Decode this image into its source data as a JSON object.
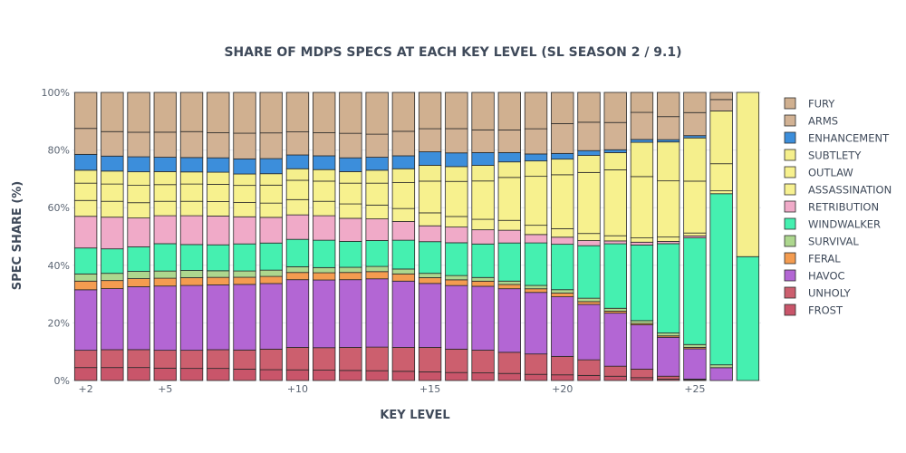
{
  "chart_data": {
    "type": "bar",
    "stacked": true,
    "title": "SHARE OF MDPS SPECS AT EACH KEY LEVEL (SL SEASON 2 / 9.1)",
    "xlabel": "KEY LEVEL",
    "ylabel": "SPEC SHARE (%)",
    "ylim": [
      0,
      100
    ],
    "y_ticks": [
      "0%",
      "20%",
      "40%",
      "60%",
      "80%",
      "100%"
    ],
    "x_ticks": [
      "+2",
      "+5",
      "+10",
      "+15",
      "+20",
      "+25"
    ],
    "x": [
      2,
      3,
      4,
      5,
      6,
      7,
      8,
      9,
      10,
      11,
      12,
      13,
      14,
      15,
      16,
      17,
      18,
      19,
      20,
      21,
      22,
      23,
      24,
      25,
      26,
      27
    ],
    "legend_position": "right",
    "grid": true,
    "series": [
      {
        "name": "FROST",
        "color": "#c9556a",
        "values": [
          4.5,
          4.5,
          4.5,
          4.3,
          4.2,
          4.2,
          4.0,
          3.8,
          3.7,
          3.6,
          3.5,
          3.4,
          3.2,
          3.0,
          2.8,
          2.7,
          2.5,
          2.2,
          2.0,
          1.8,
          1.5,
          1.0,
          0.5,
          0.3,
          0,
          0
        ]
      },
      {
        "name": "UNHOLY",
        "color": "#cc5f6e",
        "values": [
          6.0,
          6.2,
          6.2,
          6.2,
          6.3,
          6.5,
          6.7,
          7.2,
          7.8,
          7.8,
          8.0,
          8.2,
          8.3,
          8.5,
          8.2,
          8.0,
          7.5,
          7.3,
          6.5,
          5.5,
          3.5,
          3.0,
          1.0,
          0.2,
          0,
          0
        ]
      },
      {
        "name": "HAVOC",
        "color": "#b366d4",
        "values": [
          21.0,
          21.2,
          21.8,
          22.3,
          22.5,
          22.5,
          23.0,
          23.0,
          23.5,
          23.5,
          23.5,
          23.7,
          23.0,
          22.2,
          22.3,
          22.5,
          22.5,
          22.0,
          21.0,
          19.5,
          18.5,
          15.5,
          13.5,
          10.5,
          4.5,
          0
        ]
      },
      {
        "name": "FERAL",
        "color": "#f49c50",
        "values": [
          3.0,
          2.8,
          2.8,
          2.7,
          2.7,
          2.6,
          2.5,
          2.5,
          2.5,
          2.5,
          2.5,
          2.5,
          2.5,
          2.0,
          2.0,
          1.8,
          1.5,
          1.3,
          1.3,
          1.0,
          0.7,
          0.5,
          0.5,
          0.5,
          0,
          0
        ]
      },
      {
        "name": "SURVIVAL",
        "color": "#add78e",
        "values": [
          2.5,
          2.5,
          2.5,
          2.5,
          2.5,
          2.3,
          2.2,
          2.2,
          2.0,
          1.8,
          1.8,
          1.8,
          1.7,
          1.5,
          1.5,
          1.3,
          1.2,
          1.2,
          1.2,
          1.2,
          1.0,
          1.0,
          1.0,
          1.0,
          1.0,
          0
        ]
      },
      {
        "name": "WINDWALKER",
        "color": "#45f0b0",
        "values": [
          9.0,
          8.5,
          8.5,
          9.5,
          9.0,
          9.0,
          9.5,
          9.5,
          9.5,
          9.5,
          9.0,
          9.0,
          10.0,
          11.0,
          11.5,
          11.8,
          13.5,
          15.2,
          16.0,
          18.5,
          22.5,
          26.5,
          31.0,
          37.0,
          60.0,
          43.0
        ]
      },
      {
        "name": "RETRIBUTION",
        "color": "#f0aac8",
        "values": [
          11.0,
          11.0,
          10.0,
          9.7,
          10.0,
          10.0,
          9.5,
          9.0,
          8.5,
          8.5,
          8.0,
          7.5,
          6.5,
          5.5,
          5.5,
          5.0,
          4.5,
          3.0,
          2.5,
          1.8,
          1.0,
          1.0,
          0.8,
          0.7,
          0,
          0
        ]
      },
      {
        "name": "ASSASSINATION",
        "color": "#f7f191",
        "values": [
          5.5,
          5.5,
          5.3,
          5.0,
          5.0,
          5.0,
          5.0,
          5.0,
          5.3,
          5.0,
          5.0,
          4.8,
          4.5,
          4.5,
          3.7,
          3.7,
          3.5,
          3.3,
          3.0,
          2.5,
          1.8,
          1.5,
          1.5,
          1.0,
          1.0,
          0
        ]
      },
      {
        "name": "OUTLAW",
        "color": "#f7f18e",
        "values": [
          6.0,
          6.0,
          6.0,
          5.8,
          6.0,
          6.0,
          6.0,
          6.3,
          6.7,
          7.0,
          7.2,
          7.6,
          9.0,
          11.0,
          12.3,
          13.5,
          15.2,
          17.5,
          19.0,
          21.5,
          23.0,
          21.5,
          19.5,
          18.0,
          9.5,
          0
        ]
      },
      {
        "name": "SUBTLETY",
        "color": "#f5ef8c",
        "values": [
          4.5,
          4.5,
          4.7,
          4.5,
          4.2,
          4.2,
          4.0,
          4.0,
          4.0,
          4.0,
          4.0,
          4.5,
          4.8,
          5.5,
          5.2,
          5.5,
          5.5,
          5.5,
          5.5,
          6.0,
          6.0,
          12.0,
          13.5,
          15.0,
          18.5,
          57.0
        ]
      },
      {
        "name": "ENHANCEMENT",
        "color": "#3c8edb",
        "values": [
          5.5,
          5.2,
          5.2,
          5.0,
          5.0,
          5.0,
          5.3,
          5.3,
          4.8,
          4.8,
          4.8,
          4.5,
          4.5,
          4.7,
          4.8,
          4.5,
          3.3,
          2.5,
          2.0,
          1.7,
          1.0,
          1.0,
          0.8,
          0.8,
          0,
          0
        ]
      },
      {
        "name": "ARMS",
        "color": "#d2b294",
        "values": [
          9.0,
          8.5,
          8.5,
          8.7,
          9.0,
          8.7,
          9.0,
          9.0,
          8.0,
          8.0,
          8.5,
          8.0,
          8.5,
          8.0,
          8.5,
          8.0,
          8.0,
          9.0,
          10.5,
          10.0,
          9.5,
          9.5,
          8.0,
          8.0,
          4.0,
          0
        ]
      },
      {
        "name": "FURY",
        "color": "#d0b090",
        "values": [
          12.5,
          13.6,
          13.8,
          13.8,
          13.6,
          14.0,
          14.3,
          14.2,
          13.7,
          14.0,
          14.2,
          14.5,
          13.5,
          12.6,
          12.7,
          13.2,
          13.3,
          13.0,
          11.0,
          10.5,
          10.5,
          7.0,
          8.4,
          7.0,
          2.5,
          0
        ]
      }
    ]
  }
}
